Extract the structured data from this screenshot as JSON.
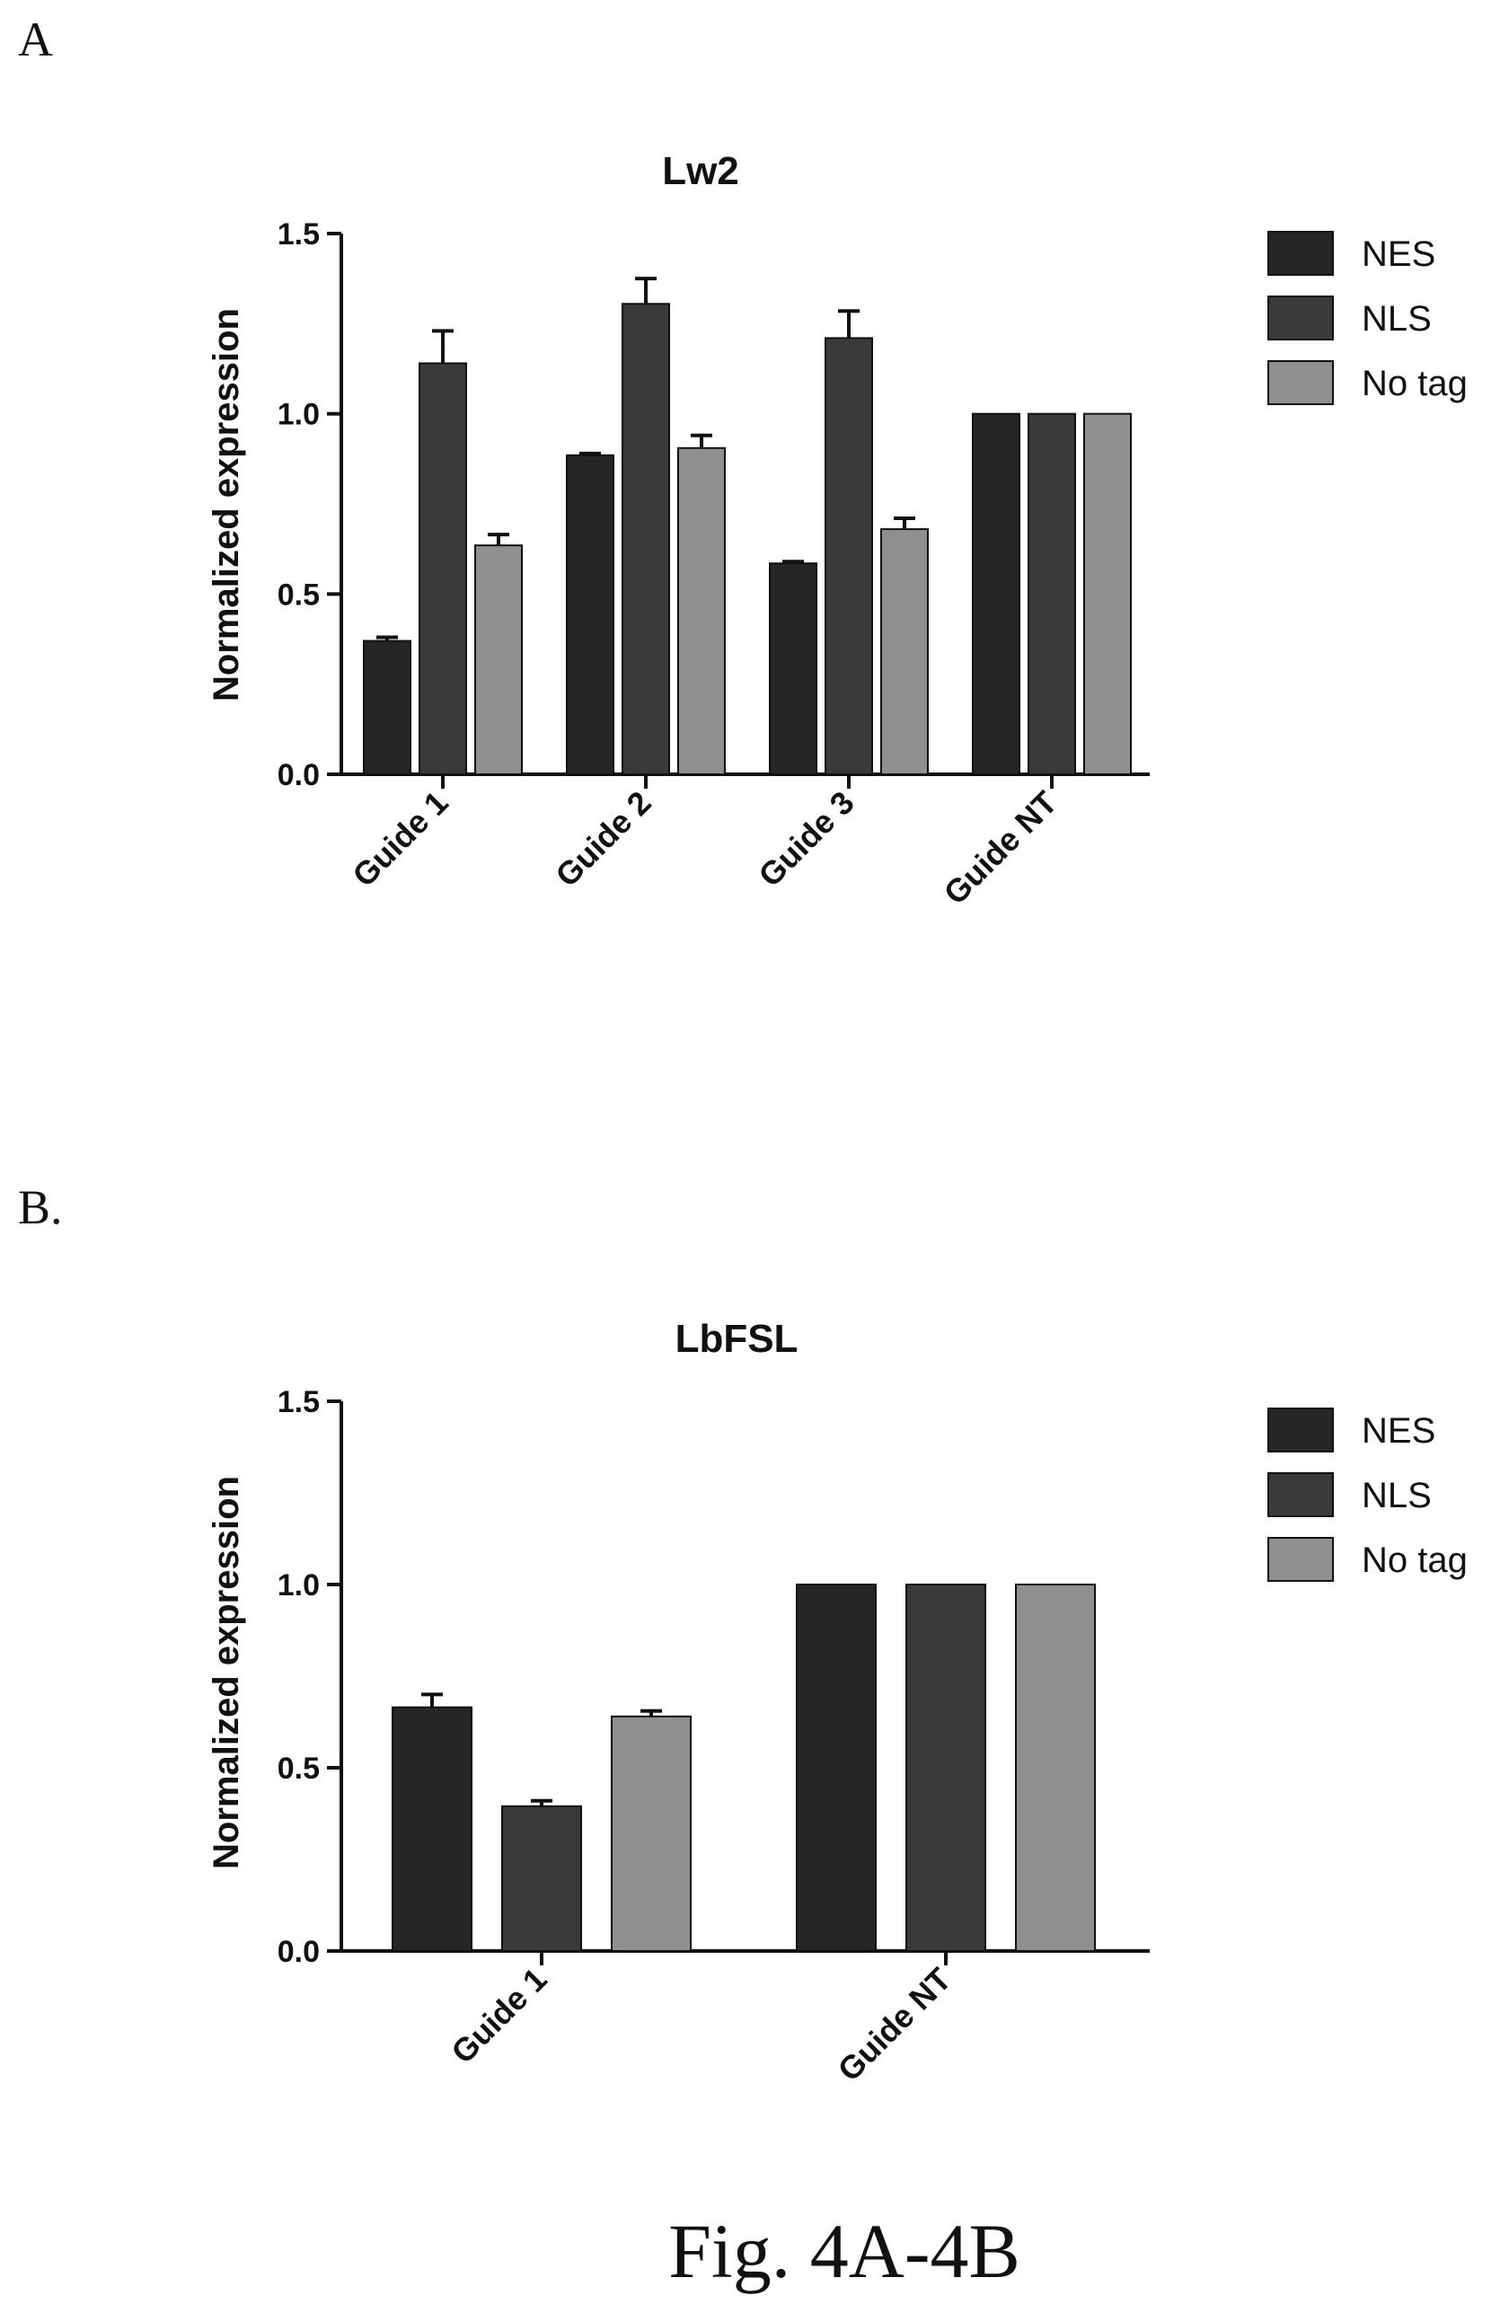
{
  "figure": {
    "caption": "Fig. 4A-4B"
  },
  "colors": {
    "NES": "#262626",
    "NLS": "#3a3a3a",
    "No tag": "#8f8f8f",
    "axis": "#111111"
  },
  "chart_data": [
    {
      "panel": "A",
      "type": "bar",
      "title": "Lw2",
      "xlabel": "",
      "ylabel": "Normalized expression",
      "ylim": [
        0,
        1.5
      ],
      "yticks": [
        "0.0",
        "0.5",
        "1.0",
        "1.5"
      ],
      "categories": [
        "Guide 1",
        "Guide 2",
        "Guide 3",
        "Guide NT"
      ],
      "series": [
        {
          "name": "NES",
          "values": [
            0.37,
            0.885,
            0.585,
            1.0
          ],
          "errors": [
            0.01,
            0.005,
            0.005,
            0.0
          ]
        },
        {
          "name": "NLS",
          "values": [
            1.14,
            1.305,
            1.21,
            1.0
          ],
          "errors": [
            0.09,
            0.07,
            0.075,
            0.0
          ]
        },
        {
          "name": "No tag",
          "values": [
            0.635,
            0.905,
            0.68,
            1.0
          ],
          "errors": [
            0.03,
            0.035,
            0.03,
            0.0
          ]
        }
      ],
      "legend": "right"
    },
    {
      "panel": "B.",
      "type": "bar",
      "title": "LbFSL",
      "xlabel": "",
      "ylabel": "Normalized expression",
      "ylim": [
        0,
        1.5
      ],
      "yticks": [
        "0.0",
        "0.5",
        "1.0",
        "1.5"
      ],
      "categories": [
        "Guide 1",
        "Guide NT"
      ],
      "series": [
        {
          "name": "NES",
          "values": [
            0.665,
            1.0
          ],
          "errors": [
            0.035,
            0.0
          ]
        },
        {
          "name": "NLS",
          "values": [
            0.395,
            1.0
          ],
          "errors": [
            0.015,
            0.0
          ]
        },
        {
          "name": "No tag",
          "values": [
            0.64,
            1.0
          ],
          "errors": [
            0.015,
            0.0
          ]
        }
      ],
      "legend": "right"
    }
  ]
}
